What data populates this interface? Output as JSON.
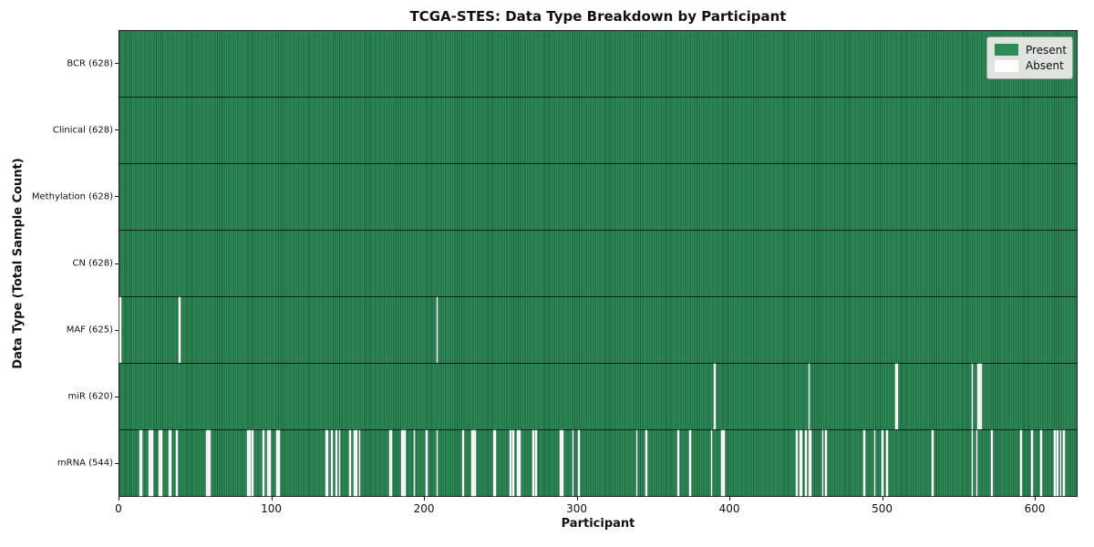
{
  "chart_data": {
    "type": "heatmap",
    "title": "TCGA-STES: Data Type Breakdown by Participant",
    "xlabel": "Participant",
    "ylabel": "Data Type (Total Sample Count)",
    "n_participants": 628,
    "xlim": [
      0,
      628
    ],
    "x_ticks": [
      0,
      100,
      200,
      300,
      400,
      500,
      600
    ],
    "grid": false,
    "legend_position": "upper right",
    "legend": [
      {
        "label": "Present",
        "color": "#2e8b57"
      },
      {
        "label": "Absent",
        "color": "#ffffff"
      }
    ],
    "colors": {
      "present": "#2e8b57",
      "present_edge": "#1f6240",
      "absent": "#ffffff",
      "row_separator": "#141d16",
      "spine": "#1a1a1a",
      "legend_background": "#dfe4df"
    },
    "rows": [
      {
        "name": "bcr",
        "label": "BCR (628)",
        "present_count": 628,
        "absent_participants": []
      },
      {
        "name": "clinical",
        "label": "Clinical (628)",
        "present_count": 628,
        "absent_participants": []
      },
      {
        "name": "methylation",
        "label": "Methylation (628)",
        "present_count": 628,
        "absent_participants": []
      },
      {
        "name": "cn",
        "label": "CN (628)",
        "present_count": 628,
        "absent_participants": []
      },
      {
        "name": "maf",
        "label": "MAF (625)",
        "present_count": 625,
        "absent_participants": [
          0,
          39,
          208
        ]
      },
      {
        "name": "mir",
        "label": "miR (620)",
        "present_count": 620,
        "absent_participants": [
          390,
          452,
          509,
          510,
          559,
          563,
          564,
          565
        ]
      },
      {
        "name": "mrna",
        "label": "mRNA (544)",
        "present_count": 544,
        "absent_participants": [
          13,
          14,
          19,
          20,
          21,
          26,
          27,
          32,
          33,
          37,
          57,
          58,
          59,
          84,
          85,
          87,
          94,
          97,
          98,
          103,
          104,
          135,
          136,
          139,
          142,
          144,
          151,
          154,
          155,
          157,
          177,
          178,
          185,
          186,
          187,
          193,
          201,
          208,
          225,
          231,
          232,
          233,
          245,
          246,
          256,
          258,
          261,
          262,
          271,
          273,
          289,
          290,
          297,
          301,
          339,
          345,
          366,
          374,
          388,
          395,
          396,
          444,
          446,
          447,
          450,
          452,
          453,
          461,
          463,
          488,
          495,
          500,
          503,
          533,
          559,
          562,
          572,
          591,
          598,
          604,
          613,
          615,
          617,
          619
        ]
      }
    ]
  }
}
